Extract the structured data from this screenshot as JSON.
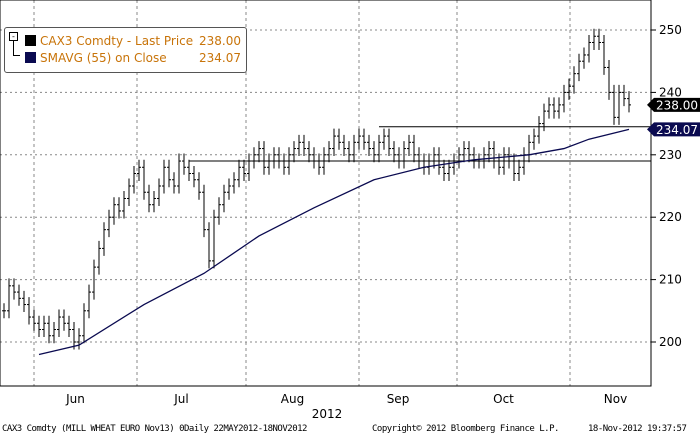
{
  "chart_data": {
    "type": "line",
    "subtype": "ohlc-bars",
    "title": "CAX3 Comdty (MILL WHEAT EURO Nov13) Daily",
    "ylim": [
      193,
      255
    ],
    "yticks": [
      "200",
      "210",
      "220",
      "230",
      "240",
      "250"
    ],
    "ytick_values": [
      200,
      210,
      220,
      230,
      240,
      250
    ],
    "xticks": [
      "Jun",
      "Jul",
      "Aug",
      "Sep",
      "Oct",
      "Nov"
    ],
    "xtick_day_index": [
      7,
      28,
      51,
      74,
      94,
      117
    ],
    "xlabel": "2012",
    "grid": true,
    "legend_position": "top-left",
    "series": [
      {
        "name": "CAX3 Comdty - Last Price",
        "value_label": "238.00",
        "color": "#000000",
        "close": [
          205,
          209,
          208,
          207,
          206,
          204,
          203,
          202,
          203,
          201,
          202,
          204,
          203,
          202,
          200,
          201,
          205,
          208,
          212,
          215,
          218,
          220,
          222,
          221,
          223,
          225,
          227,
          228,
          224,
          222,
          223,
          225,
          228,
          226,
          225,
          229,
          228,
          227,
          226,
          224,
          218,
          213,
          220,
          222,
          224,
          225,
          226,
          228,
          227,
          229,
          230,
          231,
          228,
          229,
          230,
          229,
          228,
          230,
          231,
          232,
          231,
          230,
          229,
          228,
          230,
          231,
          233,
          232,
          231,
          230,
          232,
          233,
          232,
          231,
          230,
          232,
          233,
          231,
          230,
          229,
          231,
          232,
          230,
          229,
          228,
          229,
          230,
          228,
          227,
          228,
          229,
          230,
          231,
          230,
          229,
          229,
          230,
          231,
          229,
          228,
          230,
          229,
          227,
          228,
          230,
          232,
          233,
          235,
          237,
          238,
          237,
          238,
          240,
          241,
          243,
          245,
          246,
          248,
          249,
          248,
          244,
          240,
          236,
          240,
          239,
          238
        ]
      },
      {
        "name": "SMAVG (55) on Close",
        "value_label": "234.07",
        "color": "#0a0a50",
        "points": [
          [
            7,
            198
          ],
          [
            15,
            199.5
          ],
          [
            28,
            206
          ],
          [
            40,
            211
          ],
          [
            51,
            217
          ],
          [
            62,
            221.5
          ],
          [
            74,
            226
          ],
          [
            84,
            228
          ],
          [
            94,
            229.2
          ],
          [
            105,
            230
          ],
          [
            112,
            231
          ],
          [
            117,
            232.5
          ],
          [
            125,
            234.07
          ]
        ]
      }
    ],
    "horizontal_lines": [
      {
        "value": 229,
        "from_index": 37
      },
      {
        "value": 234.5,
        "from_index": 75
      }
    ]
  },
  "legend": {
    "row1_name": "CAX3 Comdty - Last Price",
    "row1_value": "238.00",
    "row2_name": "SMAVG (55) on Close",
    "row2_value": "234.07"
  },
  "footer": {
    "left": "CAX3 Comdty (MILL WHEAT EURO  Nov13) 0Daily 22MAY2012-18NOV2012",
    "center": "Copyright© 2012 Bloomberg Finance L.P.",
    "right": "18-Nov-2012 19:37:57"
  }
}
